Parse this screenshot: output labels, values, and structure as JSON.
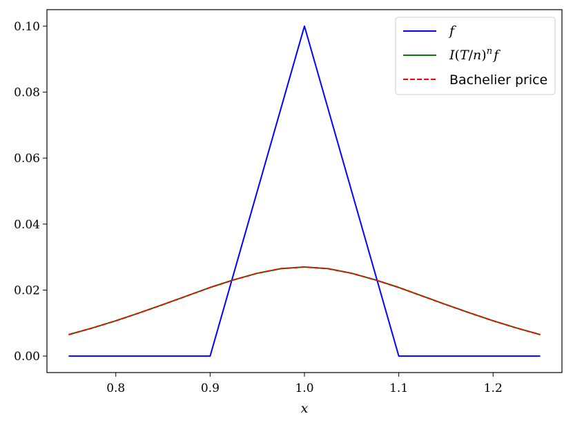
{
  "chart_data": {
    "type": "line",
    "xlabel": "x",
    "ylabel": "",
    "xlim": [
      0.727,
      1.273
    ],
    "ylim": [
      -0.005,
      0.105
    ],
    "x_ticks": [
      "0.8",
      "0.9",
      "1.0",
      "1.1",
      "1.2"
    ],
    "y_ticks": [
      "0.00",
      "0.02",
      "0.04",
      "0.06",
      "0.08",
      "0.10"
    ],
    "grid": false,
    "legend_position": "top-right",
    "series": [
      {
        "name": "f",
        "color": "#0000ff",
        "style": "solid",
        "x": [
          0.75,
          0.9,
          1.0,
          1.1,
          1.25
        ],
        "y": [
          0.0,
          0.0,
          0.1,
          0.0,
          0.0
        ]
      },
      {
        "name": "I(T/n)^n f",
        "color": "#008000",
        "style": "solid",
        "x": [
          0.75,
          0.775,
          0.8,
          0.825,
          0.85,
          0.875,
          0.9,
          0.925,
          0.95,
          0.975,
          1.0,
          1.025,
          1.05,
          1.075,
          1.1,
          1.125,
          1.15,
          1.175,
          1.2,
          1.225,
          1.25
        ],
        "y": [
          0.0065,
          0.0085,
          0.0107,
          0.0131,
          0.0156,
          0.0182,
          0.0208,
          0.0231,
          0.0251,
          0.0265,
          0.027,
          0.0265,
          0.0251,
          0.0231,
          0.0208,
          0.0182,
          0.0156,
          0.0131,
          0.0107,
          0.0085,
          0.0065
        ]
      },
      {
        "name": "Bachelier price",
        "color": "#ff0000",
        "style": "dashed",
        "x": [
          0.75,
          0.775,
          0.8,
          0.825,
          0.85,
          0.875,
          0.9,
          0.925,
          0.95,
          0.975,
          1.0,
          1.025,
          1.05,
          1.075,
          1.1,
          1.125,
          1.15,
          1.175,
          1.2,
          1.225,
          1.25
        ],
        "y": [
          0.0065,
          0.0085,
          0.0107,
          0.0131,
          0.0156,
          0.0182,
          0.0208,
          0.0231,
          0.0251,
          0.0265,
          0.027,
          0.0265,
          0.0251,
          0.0231,
          0.0208,
          0.0182,
          0.0156,
          0.0131,
          0.0107,
          0.0085,
          0.0065
        ]
      }
    ]
  }
}
